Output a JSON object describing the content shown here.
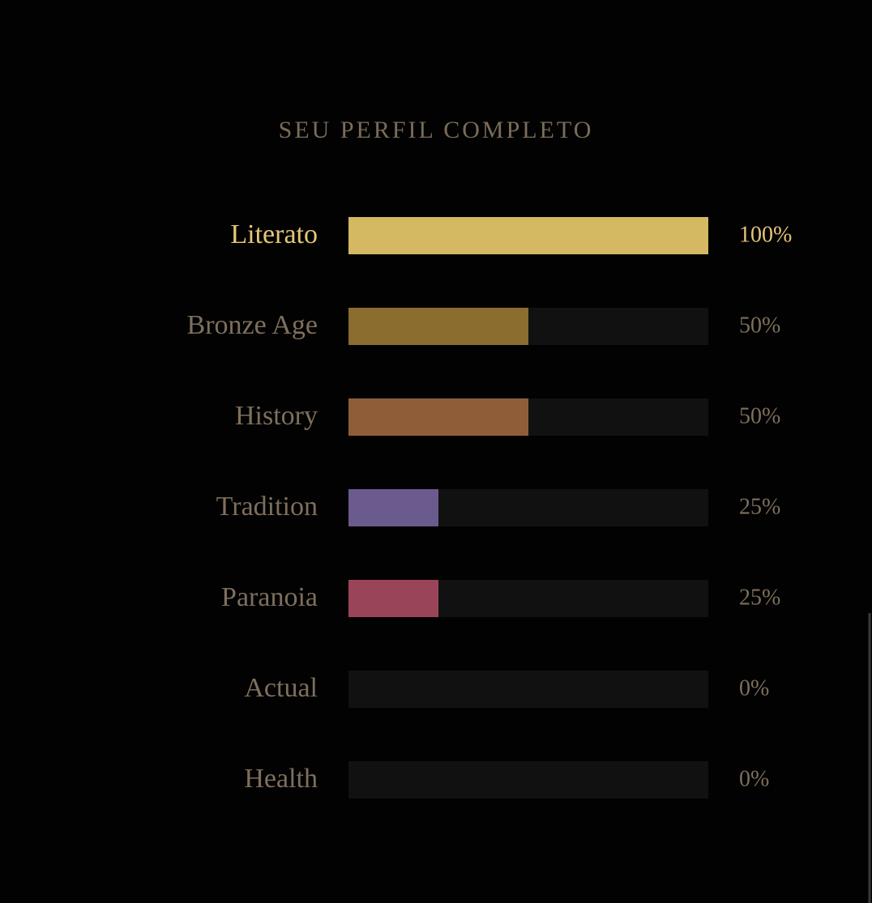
{
  "chart_data": {
    "type": "bar",
    "orientation": "horizontal",
    "title": "SEU PERFIL COMPLETO",
    "categories": [
      "Literato",
      "Bronze Age",
      "History",
      "Tradition",
      "Paranoia",
      "Actual",
      "Health"
    ],
    "values": [
      100,
      50,
      50,
      25,
      25,
      0,
      0
    ],
    "value_labels": [
      "100%",
      "50%",
      "50%",
      "25%",
      "25%",
      "0%",
      "0%"
    ],
    "colors": [
      "#d4b862",
      "#8a6d2f",
      "#8f5e38",
      "#6b5a8e",
      "#9a4459",
      "#4f7a6a",
      "#5a7a8a"
    ],
    "xlim": [
      0,
      100
    ]
  }
}
